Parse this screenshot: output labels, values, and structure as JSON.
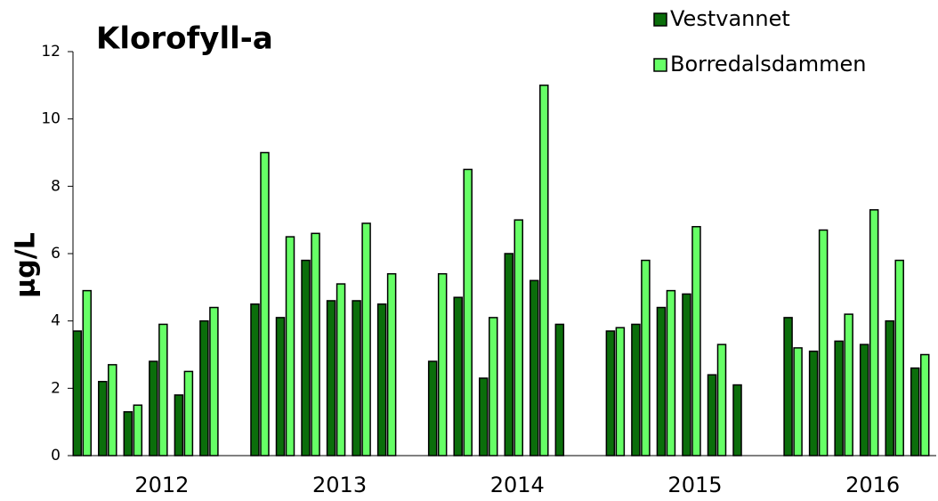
{
  "chart_data": {
    "type": "bar",
    "title": "Klorofyll-a",
    "y_label": "µg/L",
    "categories": [
      null,
      null,
      null,
      "2012",
      null,
      null,
      null,
      null,
      null,
      null,
      "2013",
      null,
      null,
      null,
      null,
      null,
      null,
      "2014",
      null,
      null,
      null,
      null,
      null,
      null,
      "2015",
      null,
      null,
      null,
      null,
      null,
      null,
      "2016",
      null,
      null
    ],
    "series": [
      {
        "name": "Vestvannet",
        "color": "#0b6e0b",
        "values": [
          3.7,
          2.2,
          1.3,
          2.8,
          1.8,
          4.0,
          null,
          4.5,
          4.1,
          5.8,
          4.6,
          4.6,
          4.5,
          null,
          2.8,
          4.7,
          2.3,
          6.0,
          5.2,
          3.9,
          null,
          3.7,
          3.9,
          4.4,
          4.8,
          2.4,
          2.1,
          null,
          4.1,
          3.1,
          3.4,
          3.3,
          4.0,
          2.6
        ]
      },
      {
        "name": "Borredalsdammen",
        "color": "#66ff66",
        "values": [
          4.9,
          2.7,
          1.5,
          3.9,
          2.5,
          4.4,
          null,
          9.0,
          6.5,
          6.6,
          5.1,
          6.9,
          5.4,
          null,
          5.4,
          8.5,
          4.1,
          7.0,
          11.0,
          null,
          null,
          3.8,
          5.8,
          4.9,
          6.8,
          3.3,
          null,
          null,
          3.2,
          6.7,
          4.2,
          7.3,
          5.8,
          3.0
        ]
      }
    ],
    "ylim": [
      0,
      12
    ],
    "yticks": [
      0,
      2,
      4,
      6,
      8,
      10,
      12
    ],
    "grid": false,
    "legend": "top-right"
  }
}
